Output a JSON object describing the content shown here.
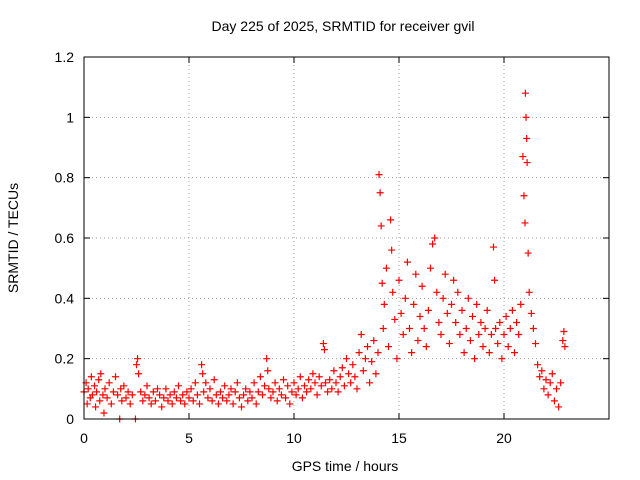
{
  "chart_data": {
    "type": "scatter",
    "title": "Day 225 of 2025, SRMTID for receiver gvil",
    "xlabel": "GPS time / hours",
    "ylabel": "SRMTID / TECUs",
    "xlim": [
      0,
      25
    ],
    "ylim": [
      0,
      1.2
    ],
    "x_ticks": [
      {
        "value": 0,
        "label": "0"
      },
      {
        "value": 5,
        "label": "5"
      },
      {
        "value": 10,
        "label": "10"
      },
      {
        "value": 15,
        "label": "15"
      },
      {
        "value": 20,
        "label": "20"
      }
    ],
    "y_ticks": [
      {
        "value": 0,
        "label": "0"
      },
      {
        "value": 0.2,
        "label": "0.2"
      },
      {
        "value": 0.4,
        "label": "0.4"
      },
      {
        "value": 0.6,
        "label": "0.6"
      },
      {
        "value": 0.8,
        "label": "0.8"
      },
      {
        "value": 1.0,
        "label": "1"
      },
      {
        "value": 1.2,
        "label": "1.2"
      }
    ],
    "grid": true,
    "marker": "plus",
    "marker_color": "#ff0000",
    "series": [
      {
        "name": "SRMTID",
        "points": [
          [
            0.0,
            0.09
          ],
          [
            0.1,
            0.12
          ],
          [
            0.15,
            0.05
          ],
          [
            0.2,
            0.1
          ],
          [
            0.3,
            0.07
          ],
          [
            0.35,
            0.14
          ],
          [
            0.4,
            0.08
          ],
          [
            0.5,
            0.11
          ],
          [
            0.55,
            0.04
          ],
          [
            0.6,
            0.09
          ],
          [
            0.7,
            0.13
          ],
          [
            0.75,
            0.06
          ],
          [
            0.8,
            0.15
          ],
          [
            0.9,
            0.08
          ],
          [
            0.95,
            0.02
          ],
          [
            1.0,
            0.1
          ],
          [
            1.1,
            0.07
          ],
          [
            1.2,
            0.12
          ],
          [
            1.3,
            0.05
          ],
          [
            1.4,
            0.09
          ],
          [
            1.5,
            0.14
          ],
          [
            1.6,
            0.08
          ],
          [
            1.7,
            0.0
          ],
          [
            1.75,
            0.1
          ],
          [
            1.8,
            0.06
          ],
          [
            1.9,
            0.11
          ],
          [
            2.0,
            0.07
          ],
          [
            2.1,
            0.09
          ],
          [
            2.2,
            0.05
          ],
          [
            2.3,
            0.08
          ],
          [
            2.45,
            0.0
          ],
          [
            2.5,
            0.18
          ],
          [
            2.55,
            0.2
          ],
          [
            2.6,
            0.15
          ],
          [
            2.7,
            0.09
          ],
          [
            2.8,
            0.06
          ],
          [
            2.9,
            0.08
          ],
          [
            3.0,
            0.11
          ],
          [
            3.1,
            0.07
          ],
          [
            3.2,
            0.05
          ],
          [
            3.3,
            0.09
          ],
          [
            3.4,
            0.06
          ],
          [
            3.5,
            0.1
          ],
          [
            3.6,
            0.08
          ],
          [
            3.7,
            0.04
          ],
          [
            3.8,
            0.07
          ],
          [
            3.9,
            0.1
          ],
          [
            4.0,
            0.06
          ],
          [
            4.1,
            0.08
          ],
          [
            4.2,
            0.05
          ],
          [
            4.3,
            0.09
          ],
          [
            4.4,
            0.07
          ],
          [
            4.5,
            0.11
          ],
          [
            4.6,
            0.06
          ],
          [
            4.7,
            0.08
          ],
          [
            4.8,
            0.05
          ],
          [
            4.9,
            0.09
          ],
          [
            5.0,
            0.07
          ],
          [
            5.1,
            0.1
          ],
          [
            5.2,
            0.06
          ],
          [
            5.3,
            0.12
          ],
          [
            5.4,
            0.08
          ],
          [
            5.5,
            0.05
          ],
          [
            5.6,
            0.18
          ],
          [
            5.65,
            0.15
          ],
          [
            5.7,
            0.09
          ],
          [
            5.8,
            0.12
          ],
          [
            5.9,
            0.07
          ],
          [
            6.0,
            0.1
          ],
          [
            6.1,
            0.06
          ],
          [
            6.2,
            0.13
          ],
          [
            6.3,
            0.08
          ],
          [
            6.4,
            0.05
          ],
          [
            6.5,
            0.09
          ],
          [
            6.6,
            0.07
          ],
          [
            6.7,
            0.11
          ],
          [
            6.8,
            0.06
          ],
          [
            6.9,
            0.08
          ],
          [
            7.0,
            0.1
          ],
          [
            7.1,
            0.05
          ],
          [
            7.2,
            0.09
          ],
          [
            7.3,
            0.12
          ],
          [
            7.4,
            0.07
          ],
          [
            7.5,
            0.04
          ],
          [
            7.6,
            0.08
          ],
          [
            7.7,
            0.1
          ],
          [
            7.8,
            0.06
          ],
          [
            7.9,
            0.09
          ],
          [
            8.0,
            0.07
          ],
          [
            8.1,
            0.12
          ],
          [
            8.2,
            0.05
          ],
          [
            8.3,
            0.09
          ],
          [
            8.4,
            0.14
          ],
          [
            8.5,
            0.08
          ],
          [
            8.6,
            0.11
          ],
          [
            8.7,
            0.2
          ],
          [
            8.75,
            0.16
          ],
          [
            8.8,
            0.1
          ],
          [
            8.9,
            0.07
          ],
          [
            9.0,
            0.09
          ],
          [
            9.1,
            0.12
          ],
          [
            9.2,
            0.06
          ],
          [
            9.3,
            0.1
          ],
          [
            9.4,
            0.08
          ],
          [
            9.5,
            0.13
          ],
          [
            9.6,
            0.07
          ],
          [
            9.7,
            0.11
          ],
          [
            9.8,
            0.05
          ],
          [
            9.9,
            0.09
          ],
          [
            10.0,
            0.12
          ],
          [
            10.1,
            0.08
          ],
          [
            10.2,
            0.1
          ],
          [
            10.3,
            0.14
          ],
          [
            10.4,
            0.07
          ],
          [
            10.5,
            0.11
          ],
          [
            10.6,
            0.09
          ],
          [
            10.7,
            0.13
          ],
          [
            10.8,
            0.1
          ],
          [
            10.9,
            0.15
          ],
          [
            11.0,
            0.12
          ],
          [
            11.1,
            0.08
          ],
          [
            11.2,
            0.14
          ],
          [
            11.3,
            0.11
          ],
          [
            11.4,
            0.25
          ],
          [
            11.45,
            0.23
          ],
          [
            11.5,
            0.12
          ],
          [
            11.6,
            0.09
          ],
          [
            11.7,
            0.13
          ],
          [
            11.8,
            0.1
          ],
          [
            11.9,
            0.16
          ],
          [
            12.0,
            0.12
          ],
          [
            12.1,
            0.09
          ],
          [
            12.2,
            0.14
          ],
          [
            12.3,
            0.17
          ],
          [
            12.4,
            0.11
          ],
          [
            12.5,
            0.2
          ],
          [
            12.6,
            0.15
          ],
          [
            12.7,
            0.12
          ],
          [
            12.8,
            0.18
          ],
          [
            12.9,
            0.14
          ],
          [
            13.0,
            0.1
          ],
          [
            13.1,
            0.22
          ],
          [
            13.2,
            0.28
          ],
          [
            13.3,
            0.16
          ],
          [
            13.4,
            0.2
          ],
          [
            13.5,
            0.24
          ],
          [
            13.6,
            0.12
          ],
          [
            13.7,
            0.19
          ],
          [
            13.8,
            0.26
          ],
          [
            13.9,
            0.15
          ],
          [
            14.0,
            0.22
          ],
          [
            14.05,
            0.81
          ],
          [
            14.1,
            0.75
          ],
          [
            14.15,
            0.64
          ],
          [
            14.2,
            0.45
          ],
          [
            14.25,
            0.3
          ],
          [
            14.3,
            0.38
          ],
          [
            14.4,
            0.5
          ],
          [
            14.5,
            0.24
          ],
          [
            14.6,
            0.66
          ],
          [
            14.65,
            0.56
          ],
          [
            14.7,
            0.42
          ],
          [
            14.8,
            0.33
          ],
          [
            14.9,
            0.2
          ],
          [
            15.0,
            0.46
          ],
          [
            15.1,
            0.35
          ],
          [
            15.2,
            0.28
          ],
          [
            15.3,
            0.4
          ],
          [
            15.4,
            0.52
          ],
          [
            15.5,
            0.3
          ],
          [
            15.6,
            0.22
          ],
          [
            15.7,
            0.38
          ],
          [
            15.8,
            0.48
          ],
          [
            15.9,
            0.26
          ],
          [
            16.0,
            0.34
          ],
          [
            16.1,
            0.44
          ],
          [
            16.2,
            0.3
          ],
          [
            16.3,
            0.24
          ],
          [
            16.4,
            0.36
          ],
          [
            16.5,
            0.5
          ],
          [
            16.6,
            0.58
          ],
          [
            16.7,
            0.6
          ],
          [
            16.8,
            0.42
          ],
          [
            16.9,
            0.32
          ],
          [
            17.0,
            0.28
          ],
          [
            17.1,
            0.4
          ],
          [
            17.2,
            0.48
          ],
          [
            17.3,
            0.35
          ],
          [
            17.4,
            0.25
          ],
          [
            17.5,
            0.38
          ],
          [
            17.6,
            0.46
          ],
          [
            17.7,
            0.32
          ],
          [
            17.8,
            0.42
          ],
          [
            17.9,
            0.28
          ],
          [
            18.0,
            0.36
          ],
          [
            18.1,
            0.22
          ],
          [
            18.2,
            0.3
          ],
          [
            18.3,
            0.4
          ],
          [
            18.4,
            0.26
          ],
          [
            18.5,
            0.34
          ],
          [
            18.6,
            0.2
          ],
          [
            18.7,
            0.38
          ],
          [
            18.8,
            0.28
          ],
          [
            18.9,
            0.32
          ],
          [
            19.0,
            0.24
          ],
          [
            19.1,
            0.3
          ],
          [
            19.2,
            0.36
          ],
          [
            19.3,
            0.22
          ],
          [
            19.4,
            0.28
          ],
          [
            19.5,
            0.57
          ],
          [
            19.55,
            0.46
          ],
          [
            19.6,
            0.3
          ],
          [
            19.7,
            0.25
          ],
          [
            19.8,
            0.32
          ],
          [
            19.9,
            0.2
          ],
          [
            20.0,
            0.28
          ],
          [
            20.1,
            0.34
          ],
          [
            20.2,
            0.24
          ],
          [
            20.3,
            0.3
          ],
          [
            20.4,
            0.36
          ],
          [
            20.5,
            0.22
          ],
          [
            20.6,
            0.32
          ],
          [
            20.7,
            0.28
          ],
          [
            20.8,
            0.38
          ],
          [
            20.9,
            0.87
          ],
          [
            20.95,
            0.74
          ],
          [
            21.0,
            0.65
          ],
          [
            21.02,
            1.08
          ],
          [
            21.05,
            1.0
          ],
          [
            21.08,
            0.93
          ],
          [
            21.1,
            0.85
          ],
          [
            21.15,
            0.55
          ],
          [
            21.2,
            0.42
          ],
          [
            21.3,
            0.35
          ],
          [
            21.4,
            0.3
          ],
          [
            21.5,
            0.25
          ],
          [
            21.6,
            0.18
          ],
          [
            21.7,
            0.14
          ],
          [
            21.8,
            0.16
          ],
          [
            21.9,
            0.1
          ],
          [
            22.0,
            0.13
          ],
          [
            22.1,
            0.08
          ],
          [
            22.2,
            0.12
          ],
          [
            22.3,
            0.15
          ],
          [
            22.4,
            0.06
          ],
          [
            22.5,
            0.1
          ],
          [
            22.6,
            0.04
          ],
          [
            22.7,
            0.12
          ],
          [
            22.8,
            0.26
          ],
          [
            22.85,
            0.29
          ],
          [
            22.9,
            0.24
          ]
        ]
      }
    ]
  }
}
